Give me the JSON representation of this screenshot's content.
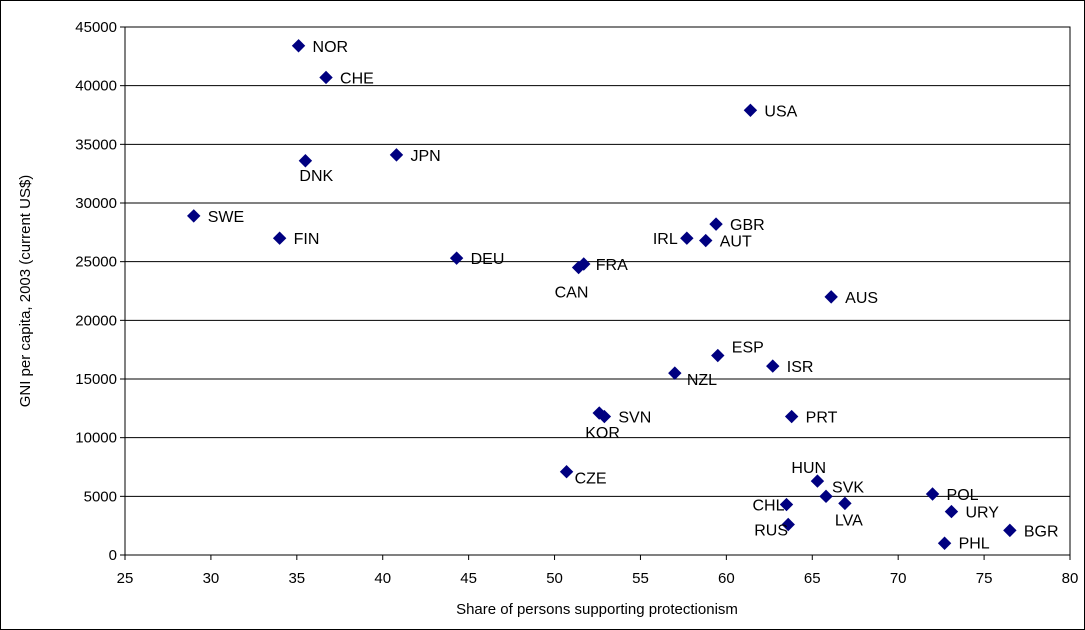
{
  "chart_data": {
    "type": "scatter",
    "title": "",
    "xlabel": "Share of persons supporting protectionism",
    "ylabel": "GNI per capita, 2003 (current US$)",
    "xlim": [
      25,
      80
    ],
    "ylim": [
      0,
      45000
    ],
    "xticks": [
      "25",
      "30",
      "35",
      "40",
      "45",
      "50",
      "55",
      "60",
      "65",
      "70",
      "75",
      "80"
    ],
    "yticks": [
      "0",
      "5000",
      "10000",
      "15000",
      "20000",
      "25000",
      "30000",
      "35000",
      "40000",
      "45000"
    ],
    "grid": "horizontal",
    "marker_color": "#000080",
    "points": [
      {
        "label": "NOR",
        "x": 35.1,
        "y": 43400
      },
      {
        "label": "CHE",
        "x": 36.7,
        "y": 40700
      },
      {
        "label": "USA",
        "x": 61.4,
        "y": 37900
      },
      {
        "label": "JPN",
        "x": 40.8,
        "y": 34100
      },
      {
        "label": "DNK",
        "x": 35.5,
        "y": 33600
      },
      {
        "label": "SWE",
        "x": 29.0,
        "y": 28900
      },
      {
        "label": "GBR",
        "x": 59.4,
        "y": 28200
      },
      {
        "label": "FIN",
        "x": 34.0,
        "y": 27000
      },
      {
        "label": "IRL",
        "x": 57.7,
        "y": 27000
      },
      {
        "label": "AUT",
        "x": 58.8,
        "y": 26800
      },
      {
        "label": "DEU",
        "x": 44.3,
        "y": 25300
      },
      {
        "label": "FRA",
        "x": 51.7,
        "y": 24800
      },
      {
        "label": "CAN",
        "x": 51.4,
        "y": 24500
      },
      {
        "label": "AUS",
        "x": 66.1,
        "y": 22000
      },
      {
        "label": "ESP",
        "x": 59.5,
        "y": 17000
      },
      {
        "label": "ISR",
        "x": 62.7,
        "y": 16100
      },
      {
        "label": "NZL",
        "x": 57.0,
        "y": 15500
      },
      {
        "label": "SVN",
        "x": 52.9,
        "y": 11800
      },
      {
        "label": "KOR",
        "x": 52.6,
        "y": 12100
      },
      {
        "label": "PRT",
        "x": 63.8,
        "y": 11800
      },
      {
        "label": "CZE",
        "x": 50.7,
        "y": 7100
      },
      {
        "label": "HUN",
        "x": 65.3,
        "y": 6300
      },
      {
        "label": "SVK",
        "x": 65.8,
        "y": 5000
      },
      {
        "label": "POL",
        "x": 72.0,
        "y": 5200
      },
      {
        "label": "LVA",
        "x": 66.9,
        "y": 4400
      },
      {
        "label": "CHL",
        "x": 63.5,
        "y": 4300
      },
      {
        "label": "URY",
        "x": 73.1,
        "y": 3700
      },
      {
        "label": "RUS",
        "x": 63.6,
        "y": 2600
      },
      {
        "label": "BGR",
        "x": 76.5,
        "y": 2100
      },
      {
        "label": "PHL",
        "x": 72.7,
        "y": 1000
      }
    ]
  }
}
